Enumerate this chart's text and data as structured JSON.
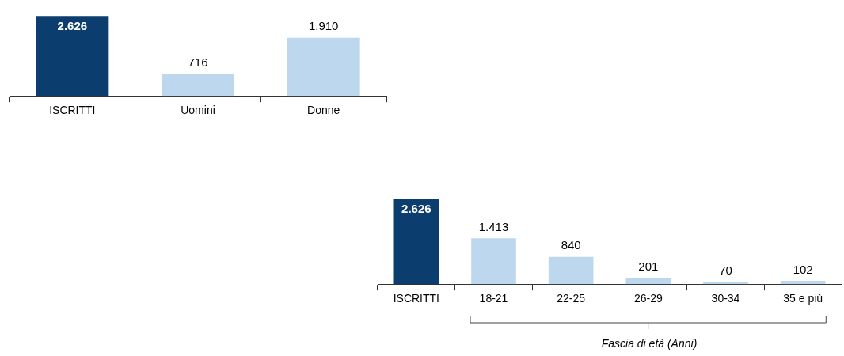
{
  "chart_data": [
    {
      "type": "bar",
      "categories": [
        "ISCRITTI",
        "Uomini",
        "Donne"
      ],
      "values": [
        2626,
        716,
        1910
      ],
      "colors": [
        "#0b3d6f",
        "#bdd7ee",
        "#bdd7ee"
      ],
      "value_labels": [
        "2.626",
        "716",
        "1.910"
      ],
      "grid": false,
      "legend": false
    },
    {
      "type": "bar",
      "categories": [
        "ISCRITTI",
        "18-21",
        "22-25",
        "26-29",
        "30-34",
        "35 e più"
      ],
      "values": [
        2626,
        1413,
        840,
        201,
        70,
        102
      ],
      "colors": [
        "#0b3d6f",
        "#bdd7ee",
        "#bdd7ee",
        "#bdd7ee",
        "#bdd7ee",
        "#bdd7ee"
      ],
      "value_labels": [
        "2.626",
        "1.413",
        "840",
        "201",
        "70",
        "102"
      ],
      "xlabel": "Fascia di età (Anni)",
      "grid": false,
      "legend": false
    }
  ]
}
